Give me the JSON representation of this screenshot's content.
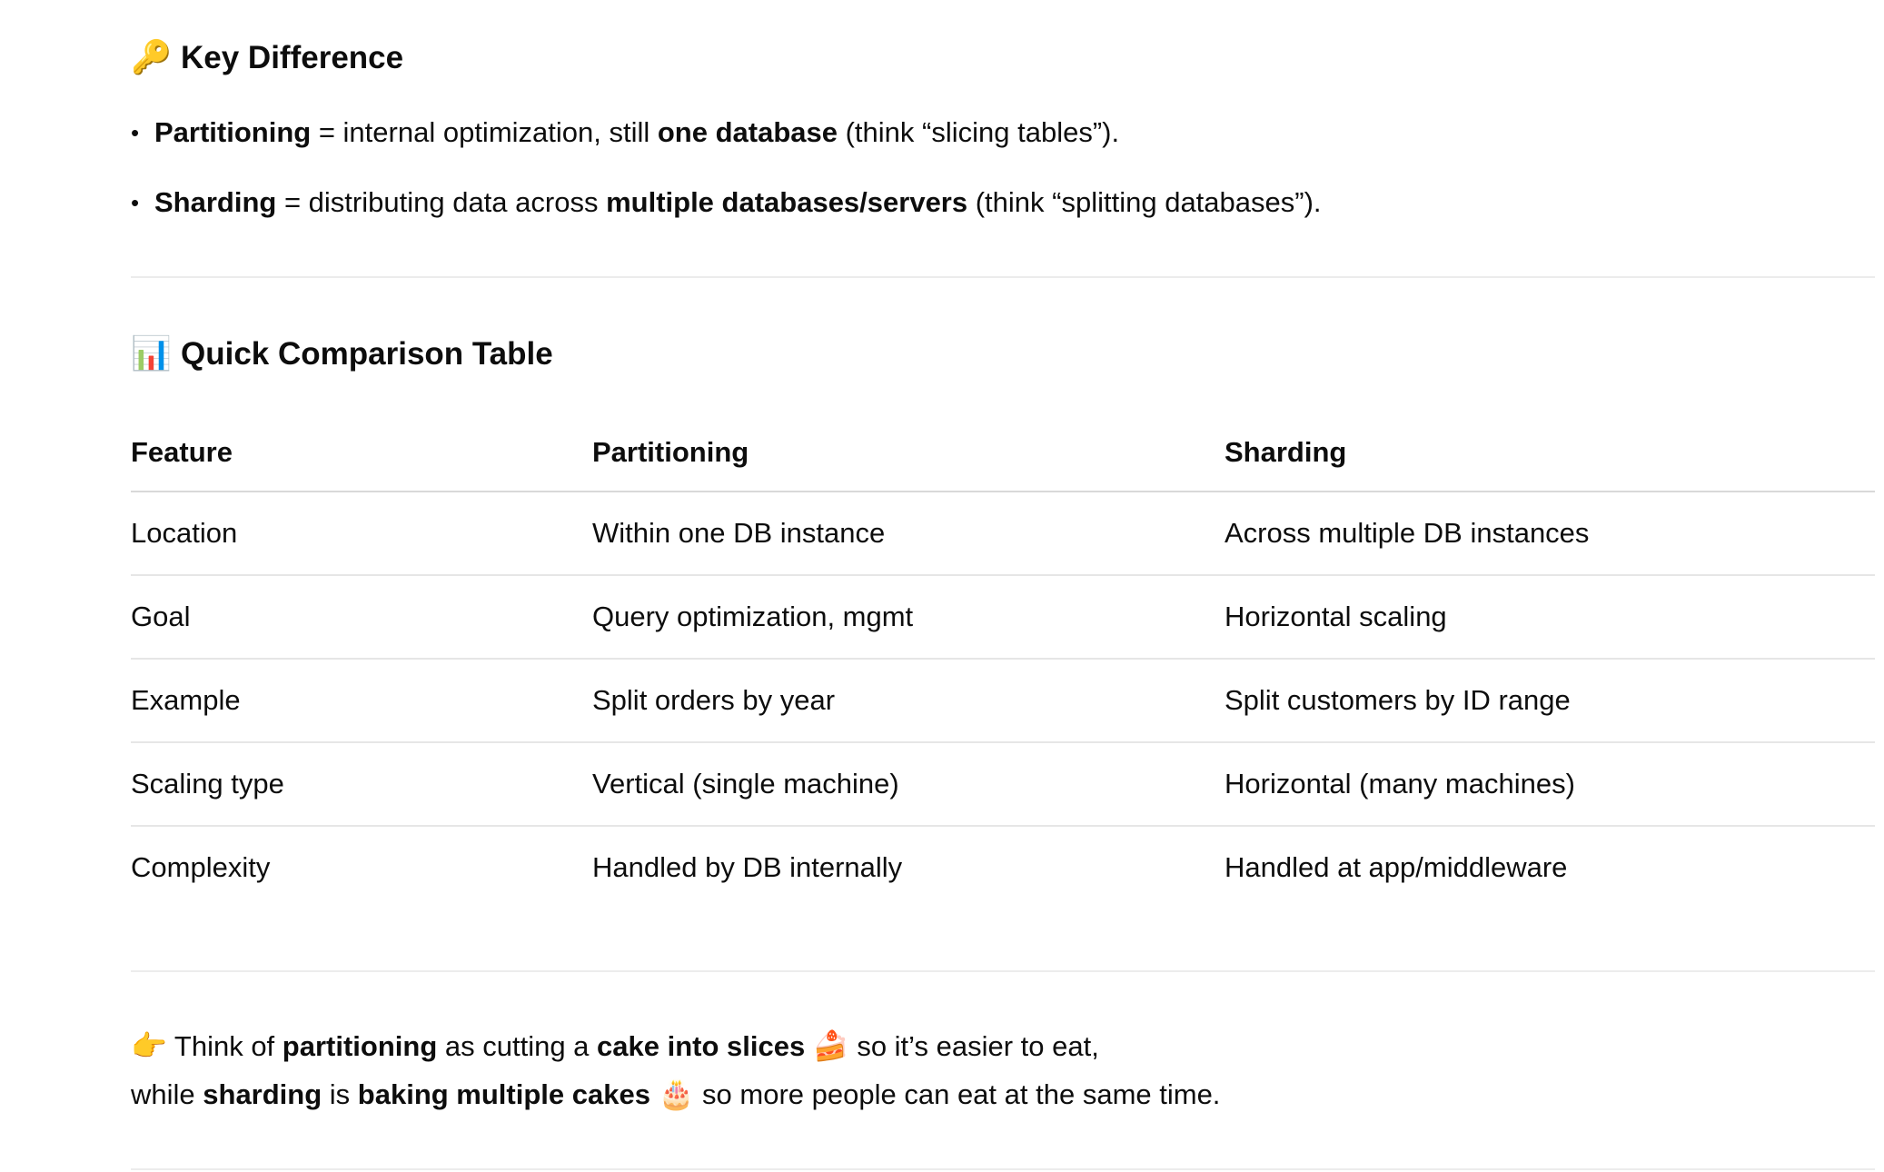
{
  "key_difference": {
    "icon": "key-icon",
    "emoji": "🔑",
    "title": "Key Difference",
    "bullets": [
      {
        "term": "Partitioning",
        "t1": " = internal optimization, still ",
        "strong": "one database",
        "t2": " (think “slicing tables”)."
      },
      {
        "term": "Sharding",
        "t1": " = distributing data across ",
        "strong": "multiple databases/servers",
        "t2": " (think “splitting databases”)."
      }
    ]
  },
  "comparison": {
    "icon": "bar-chart-icon",
    "emoji": "📊",
    "title": "Quick Comparison Table",
    "headers": [
      "Feature",
      "Partitioning",
      "Sharding"
    ],
    "rows": [
      [
        "Location",
        "Within one DB instance",
        "Across multiple DB instances"
      ],
      [
        "Goal",
        "Query optimization, mgmt",
        "Horizontal scaling"
      ],
      [
        "Example",
        "Split orders by year",
        "Split customers by ID range"
      ],
      [
        "Scaling type",
        "Vertical (single machine)",
        "Horizontal (many machines)"
      ],
      [
        "Complexity",
        "Handled by DB internally",
        "Handled at app/middleware"
      ]
    ]
  },
  "analogy": {
    "pointer_emoji": "👉",
    "line1": {
      "a": " Think of ",
      "b": "partitioning",
      "c": " as cutting a ",
      "d": "cake into slices",
      "emoji": "🍰",
      "e": " so it’s easier to eat,"
    },
    "line2": {
      "a": "while ",
      "b": "sharding",
      "c": " is ",
      "d": "baking multiple cakes",
      "emoji": "🎂",
      "e": " so more people can eat at the same time."
    }
  }
}
